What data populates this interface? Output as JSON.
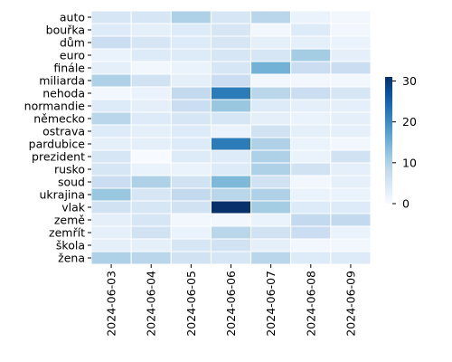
{
  "chart_data": {
    "type": "heatmap",
    "title": "",
    "xlabel": "",
    "ylabel": "",
    "x": [
      "2024-06-03",
      "2024-06-04",
      "2024-06-05",
      "2024-06-06",
      "2024-06-07",
      "2024-06-08",
      "2024-06-09"
    ],
    "y": [
      "auto",
      "bouřka",
      "dům",
      "euro",
      "finále",
      "miliarda",
      "nehoda",
      "normandie",
      "německo",
      "ostrava",
      "pardubice",
      "prezident",
      "rusko",
      "soud",
      "ukrajina",
      "vlak",
      "země",
      "zemřít",
      "škola",
      "žena"
    ],
    "values": [
      [
        5,
        5,
        10,
        5,
        9,
        2,
        1
      ],
      [
        4,
        3,
        4,
        5,
        1,
        4,
        1
      ],
      [
        7,
        5,
        4,
        5,
        3,
        3,
        2
      ],
      [
        2,
        4,
        4,
        5,
        5,
        11,
        3
      ],
      [
        3,
        1,
        2,
        5,
        15,
        7,
        7
      ],
      [
        10,
        6,
        3,
        7,
        1,
        1,
        1
      ],
      [
        1,
        2,
        8,
        22,
        9,
        7,
        5
      ],
      [
        4,
        3,
        7,
        12,
        4,
        3,
        3
      ],
      [
        9,
        4,
        5,
        5,
        3,
        2,
        3
      ],
      [
        4,
        3,
        4,
        2,
        6,
        3,
        3
      ],
      [
        3,
        3,
        4,
        22,
        10,
        2,
        1
      ],
      [
        5,
        0,
        4,
        4,
        10,
        2,
        6
      ],
      [
        5,
        2,
        2,
        4,
        10,
        6,
        3
      ],
      [
        7,
        10,
        6,
        14,
        6,
        1,
        3
      ],
      [
        12,
        5,
        8,
        9,
        10,
        2,
        2
      ],
      [
        6,
        5,
        6,
        31,
        11,
        4,
        4
      ],
      [
        3,
        5,
        1,
        1,
        2,
        8,
        8
      ],
      [
        3,
        6,
        2,
        9,
        6,
        7,
        2
      ],
      [
        3,
        3,
        5,
        6,
        3,
        1,
        1
      ],
      [
        10,
        9,
        6,
        5,
        9,
        4,
        4
      ]
    ],
    "vmin": 0,
    "vmax": 31,
    "colorbar_ticks": [
      0,
      10,
      20,
      30
    ],
    "colormap": "Blues",
    "colormap_stops": [
      "#f7fbff",
      "#deebf7",
      "#c6dbef",
      "#9ecae1",
      "#6baed6",
      "#4292c6",
      "#2171b5",
      "#08519c",
      "#08306b"
    ],
    "grid": false,
    "colorbar_placement": "right"
  }
}
